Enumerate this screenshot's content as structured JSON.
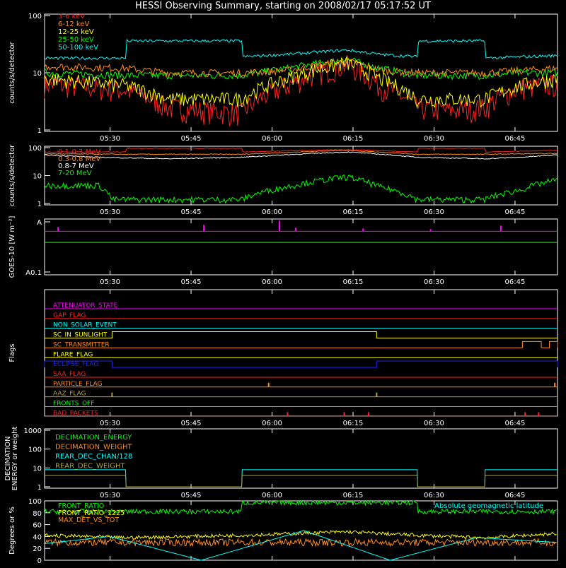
{
  "title": "HESSI Observing Summary, starting on 2008/02/17 05:17:52 UT",
  "colors": {
    "red": "#ff2020",
    "orange": "#ff8c1a",
    "yellow": "#ffff00",
    "green": "#00ff00",
    "cyan": "#00ffff",
    "magenta": "#ff00ff",
    "blue": "#2020ff",
    "white": "#ffffff",
    "olive": "#b0a040",
    "axis": "#ffffff"
  },
  "chart_data": [
    {
      "id": "energy-panel",
      "type": "line",
      "ylabel": "counts/s/detector",
      "yscale": "log",
      "ylim": [
        1,
        100
      ],
      "yticks": [
        "100",
        "10",
        "1"
      ],
      "xticks": [
        "05:30",
        "05:45",
        "06:00",
        "06:15",
        "06:30",
        "06:45"
      ],
      "legend_position": "top-left",
      "series": [
        {
          "name": "3-6 keV",
          "color": "red",
          "x_min": [
            0,
            15,
            23,
            30,
            36.5,
            45,
            56,
            62,
            69,
            75,
            81.5,
            88,
            95
          ],
          "y": [
            6.5,
            5,
            2.5,
            2.2,
            2,
            6,
            14,
            6,
            2.5,
            2.2,
            2.5,
            5.5,
            6.5
          ]
        },
        {
          "name": "6-12 keV",
          "color": "orange",
          "x_min": [
            0,
            15,
            23,
            36.5,
            45,
            56,
            62,
            69,
            81.5,
            88,
            95
          ],
          "y": [
            13,
            12,
            10,
            10,
            11,
            16,
            11,
            10,
            10,
            11,
            12
          ]
        },
        {
          "name": "12-25 keV",
          "color": "yellow",
          "x_min": [
            0,
            15,
            23,
            36.5,
            45,
            56,
            62,
            69,
            81.5,
            88,
            95
          ],
          "y": [
            8,
            6,
            3.5,
            3.5,
            8,
            15,
            8,
            3.5,
            3.5,
            6,
            8
          ]
        },
        {
          "name": "25-50 keV",
          "color": "green",
          "x_min": [
            0,
            15,
            23,
            36.5,
            45,
            56,
            62,
            69,
            81.5,
            88,
            95
          ],
          "y": [
            10,
            9,
            9,
            9,
            12,
            17,
            12,
            9,
            9,
            10,
            10
          ]
        },
        {
          "name": "50-100 keV",
          "color": "cyan",
          "x_min": [
            0,
            15,
            15.1,
            36.5,
            36.6,
            45,
            56,
            62,
            69,
            69.1,
            81.5,
            81.6,
            95
          ],
          "y": [
            18,
            18,
            36,
            36,
            19,
            21,
            25,
            21,
            19,
            36,
            36,
            18,
            20
          ]
        }
      ]
    },
    {
      "id": "nuclear-panel",
      "type": "line",
      "ylabel": "counts/s/detector",
      "yscale": "log",
      "ylim": [
        1,
        100
      ],
      "yticks": [
        "100",
        "10",
        "1"
      ],
      "xticks": [
        "05:30",
        "05:45",
        "06:00",
        "06:15",
        "06:30",
        "06:45"
      ],
      "legend_position": "top-left",
      "series": [
        {
          "name": "0.1-0.3 MeV",
          "color": "red",
          "x_min": [
            0,
            15,
            15.1,
            36.5,
            36.6,
            56,
            69,
            69.1,
            81.5,
            81.6,
            95
          ],
          "y": [
            70,
            70,
            95,
            95,
            70,
            85,
            70,
            95,
            95,
            70,
            80
          ]
        },
        {
          "name": "0.3-0.8 MeV",
          "color": "orange",
          "x_min": [
            0,
            15,
            36.5,
            56,
            69,
            81.5,
            95
          ],
          "y": [
            60,
            58,
            58,
            80,
            58,
            58,
            62
          ]
        },
        {
          "name": "0.8-7 MeV",
          "color": "white",
          "x_min": [
            0,
            10,
            23,
            36.5,
            56,
            69,
            81.5,
            88,
            95
          ],
          "y": [
            55,
            45,
            40,
            45,
            70,
            45,
            40,
            45,
            55
          ]
        },
        {
          "name": "7-20 MeV",
          "color": "green",
          "x_min": [
            0,
            10,
            12.5,
            36.5,
            45,
            56,
            62,
            69,
            81.5,
            88,
            95
          ],
          "y": [
            4.5,
            4.5,
            1.4,
            1.4,
            4,
            9,
            4,
            1.4,
            1.4,
            3,
            7
          ]
        }
      ]
    },
    {
      "id": "goes-panel",
      "type": "line",
      "ylabel": "GOES-10 [W m⁻²]",
      "yscale": "log",
      "yticks": [
        "A",
        "A0.1"
      ],
      "xticks": [
        "05:30",
        "05:45",
        "06:00",
        "06:15",
        "06:30",
        "06:45"
      ],
      "series": [
        {
          "color": "magenta",
          "level": 0.78,
          "spikes_x_min": [
            2.5,
            29.5,
            43.5,
            46.5,
            59,
            71.5,
            84.5
          ],
          "spikes_h": [
            0.3,
            0.45,
            0.75,
            0.25,
            0.2,
            0.15,
            0.4
          ]
        },
        {
          "color": "green",
          "level": 0.58
        }
      ]
    },
    {
      "id": "flags-panel",
      "type": "line",
      "ylabel": "Flags",
      "xticks": [
        "05:30",
        "05:45",
        "06:00",
        "06:15",
        "06:30",
        "06:45"
      ],
      "flags": [
        {
          "name": "ATTENUATOR_STATE",
          "color": "magenta",
          "steps": []
        },
        {
          "name": "GAP_FLAG",
          "color": "red",
          "steps": []
        },
        {
          "name": "NON_SOLAR_EVENT",
          "color": "cyan",
          "steps": []
        },
        {
          "name": "SC_IN_SUNLIGHT",
          "color": "yellow",
          "high": [
            [
              12.5,
              61.5
            ]
          ]
        },
        {
          "name": "SC_TRANSMITTER",
          "color": "orange",
          "high": [
            [
              88.5,
              92
            ],
            [
              93.5,
              95
            ]
          ]
        },
        {
          "name": "FLARE_FLAG",
          "color": "yellow",
          "steps": []
        },
        {
          "name": "ECLIPSE_FLAG",
          "color": "blue",
          "high": [
            [
              0,
              12.5
            ],
            [
              61.5,
              95
            ]
          ]
        },
        {
          "name": "SAA_FLAG",
          "color": "red",
          "steps": []
        },
        {
          "name": "PARTICLE_FLAG",
          "color": "orange",
          "spikes": [
            41.5,
            94.5
          ]
        },
        {
          "name": "AAZ_FLAG",
          "color": "olive",
          "spikes": [
            12.5,
            61.5
          ]
        },
        {
          "name": "FRONTS_OFF",
          "color": "green",
          "steps": []
        },
        {
          "name": "BAD_PACKETS",
          "color": "red",
          "spikes": [
            45,
            55.5,
            60,
            89,
            91.5
          ]
        }
      ]
    },
    {
      "id": "decimation-panel",
      "type": "line",
      "ylabel": "DECIMATION ENERGY or weight",
      "yscale": "log",
      "ylim": [
        1,
        1000
      ],
      "yticks": [
        "1000",
        "100",
        "10",
        "1"
      ],
      "xticks": [
        "05:30",
        "05:45",
        "06:00",
        "06:15",
        "06:30",
        "06:45"
      ],
      "legend_position": "top-left",
      "series": [
        {
          "name": "DECIMATION_ENERGY",
          "color": "green"
        },
        {
          "name": "DECIMATION_WEIGHT",
          "color": "orange"
        },
        {
          "name": "REAR_DEC_CHAN/128",
          "color": "cyan",
          "x_min": [
            0,
            15,
            15.1,
            36.5,
            36.6,
            69,
            69.1,
            81.5,
            81.6,
            95
          ],
          "y": [
            8,
            8,
            1,
            1,
            8,
            8,
            1,
            1,
            8,
            8
          ]
        },
        {
          "name": "REAR_DEC_WEIGHT",
          "color": "olive",
          "x_min": [
            0,
            15,
            15.1,
            36.5,
            36.6,
            69,
            69.1,
            81.5,
            81.6,
            95
          ],
          "y": [
            4,
            4,
            1,
            1,
            4,
            4,
            1,
            1,
            4,
            4
          ]
        }
      ]
    },
    {
      "id": "ratio-panel",
      "type": "line",
      "ylabel": "Degrees or %",
      "ylim": [
        0,
        100
      ],
      "yticks": [
        "100",
        "80",
        "60",
        "40",
        "20",
        "0"
      ],
      "xticks": [
        "05:30",
        "05:45",
        "06:00",
        "06:15",
        "06:30",
        "06:45"
      ],
      "legend_position": "top-left",
      "annotation": "Absolute geomagnetic latitude",
      "series": [
        {
          "name": "FRONT_RATIO",
          "color": "green",
          "x_min": [
            0,
            36.5,
            36.6,
            69,
            69.1,
            95
          ],
          "y": [
            82,
            82,
            97,
            97,
            82,
            82
          ]
        },
        {
          "name": "FRONT_RATIO_1225",
          "color": "yellow",
          "x_min": [
            0,
            15,
            36.5,
            56,
            69,
            81.5,
            95
          ],
          "y": [
            42,
            38,
            42,
            48,
            42,
            38,
            45
          ]
        },
        {
          "name": "MAX_DET_VS_TOT",
          "color": "orange",
          "x_min": [
            0,
            95
          ],
          "y": [
            30,
            30
          ]
        },
        {
          "name": "Absolute geomagnetic latitude",
          "color": "cyan",
          "x_min": [
            0,
            12,
            29,
            48,
            64,
            80,
            95
          ],
          "y": [
            28,
            40,
            0,
            50,
            0,
            38,
            30
          ]
        }
      ]
    }
  ]
}
